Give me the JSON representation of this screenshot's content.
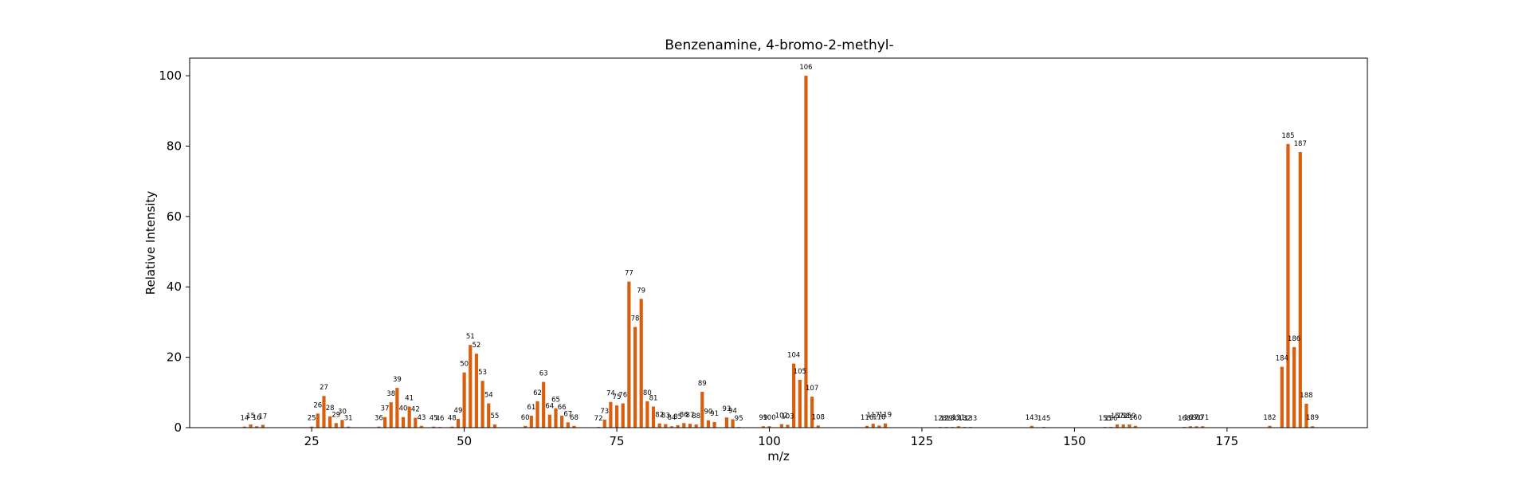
{
  "chart_data": {
    "type": "bar",
    "title": "Benzenamine, 4-bromo-2-methyl-",
    "xlabel": "m/z",
    "ylabel": "Relative Intensity",
    "xlim": [
      5,
      198
    ],
    "ylim": [
      0,
      105
    ],
    "xticks": [
      25,
      50,
      75,
      100,
      125,
      150,
      175
    ],
    "yticks": [
      0,
      20,
      40,
      60,
      80,
      100
    ],
    "grid": false,
    "bar_color": "#d95f0e",
    "x": [
      14,
      15,
      16,
      17,
      25,
      26,
      27,
      28,
      29,
      30,
      31,
      36,
      37,
      38,
      39,
      40,
      41,
      42,
      43,
      45,
      46,
      48,
      49,
      50,
      51,
      52,
      53,
      54,
      55,
      60,
      61,
      62,
      63,
      64,
      65,
      66,
      67,
      68,
      72,
      73,
      74,
      75,
      76,
      77,
      78,
      79,
      80,
      81,
      82,
      83,
      84,
      85,
      86,
      87,
      88,
      89,
      90,
      91,
      93,
      94,
      95,
      99,
      100,
      102,
      103,
      104,
      105,
      106,
      107,
      108,
      116,
      117,
      118,
      119,
      128,
      129,
      130,
      131,
      132,
      133,
      143,
      145,
      155,
      156,
      157,
      158,
      159,
      160,
      168,
      169,
      170,
      171,
      182,
      184,
      185,
      186,
      187,
      188,
      189
    ],
    "values": [
      0.3,
      0.9,
      0.4,
      0.8,
      0.3,
      4.0,
      9.0,
      3.2,
      1.3,
      2.2,
      0.3,
      0.3,
      3.0,
      7.2,
      11.3,
      3.0,
      6.0,
      2.8,
      0.5,
      0.3,
      0.2,
      0.3,
      2.5,
      15.7,
      23.5,
      21.0,
      13.3,
      6.9,
      0.9,
      0.5,
      3.4,
      7.5,
      13.0,
      3.7,
      5.5,
      3.4,
      1.5,
      0.5,
      0.2,
      2.3,
      7.3,
      6.3,
      6.9,
      41.5,
      28.6,
      36.6,
      7.5,
      6.0,
      1.2,
      1.0,
      0.4,
      0.7,
      1.3,
      1.1,
      0.9,
      10.2,
      2.1,
      1.6,
      2.9,
      2.4,
      0.2,
      0.4,
      0.4,
      1.0,
      0.8,
      18.2,
      13.6,
      100.0,
      8.8,
      0.6,
      0.5,
      1.1,
      0.6,
      1.2,
      0.2,
      0.2,
      0.2,
      0.4,
      0.2,
      0.2,
      0.5,
      0.2,
      0.2,
      0.2,
      0.9,
      0.9,
      0.9,
      0.5,
      0.2,
      0.4,
      0.4,
      0.4,
      0.5,
      17.3,
      80.6,
      22.9,
      78.3,
      6.8,
      0.4
    ]
  }
}
